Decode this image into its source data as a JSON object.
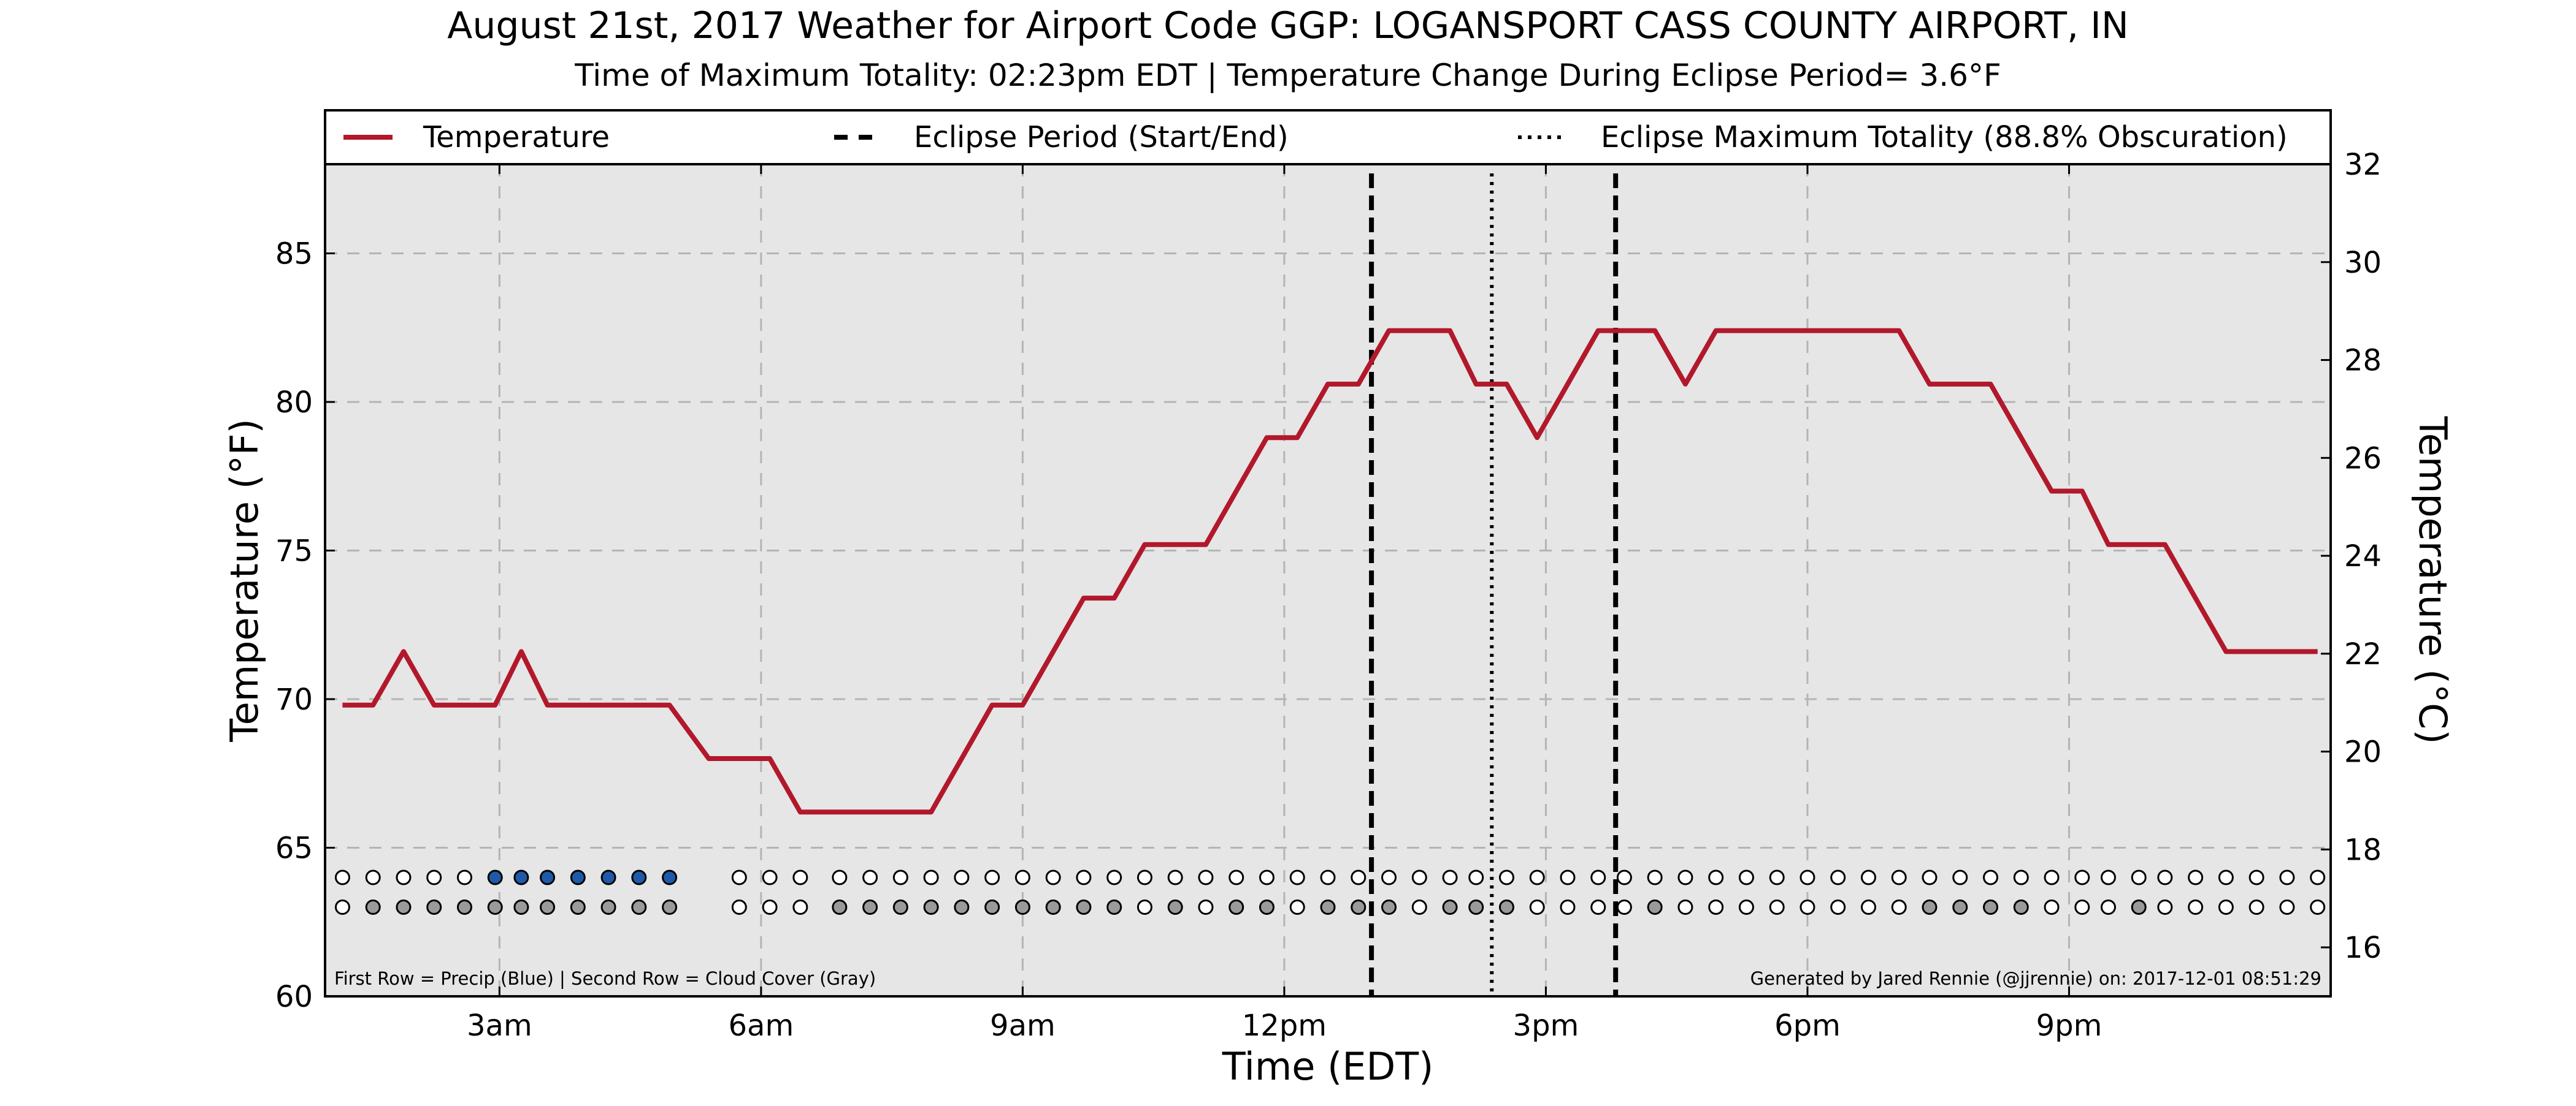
{
  "chart_data": {
    "type": "line",
    "title": "August 21st, 2017 Weather for Airport Code GGP: LOGANSPORT CASS COUNTY AIRPORT, IN",
    "subtitle": "Time of Maximum Totality: 02:23pm EDT | Temperature Change During Eclipse Period= 3.6°F",
    "xlabel": "Time (EDT)",
    "ylabel": "Temperature (°F)",
    "ylabel_right": "Temperature (°C)",
    "xlim": [
      1.0,
      24.0
    ],
    "ylim": [
      60,
      88
    ],
    "ylim_right": [
      15.0,
      32.0
    ],
    "x_ticks": [
      {
        "x": 3,
        "label": "3am"
      },
      {
        "x": 6,
        "label": "6am"
      },
      {
        "x": 9,
        "label": "9am"
      },
      {
        "x": 12,
        "label": "12pm"
      },
      {
        "x": 15,
        "label": "3pm"
      },
      {
        "x": 18,
        "label": "6pm"
      },
      {
        "x": 21,
        "label": "9pm"
      }
    ],
    "y_ticks": [
      60,
      65,
      70,
      75,
      80,
      85
    ],
    "y_ticks_right": [
      16,
      18,
      20,
      22,
      24,
      26,
      28,
      30,
      32
    ],
    "grid": true,
    "legend": {
      "placement": "top",
      "entries": [
        {
          "label": "Temperature",
          "style": "solid"
        },
        {
          "label": "Eclipse Period (Start/End)",
          "style": "dashed"
        },
        {
          "label": "Eclipse Maximum Totality (88.8% Obscuration)",
          "style": "dotted"
        }
      ]
    },
    "series": [
      {
        "name": "Temperature",
        "color": "#b2182b",
        "x": [
          1.2,
          1.55,
          1.9,
          2.25,
          2.6,
          2.95,
          3.25,
          3.55,
          3.9,
          4.25,
          4.6,
          4.95,
          5.4,
          5.75,
          6.1,
          6.45,
          6.9,
          7.25,
          7.6,
          7.95,
          8.3,
          8.65,
          9.0,
          9.35,
          9.7,
          10.05,
          10.4,
          10.75,
          11.1,
          11.45,
          11.8,
          12.15,
          12.5,
          12.85,
          13.2,
          13.55,
          13.9,
          14.2,
          14.55,
          14.9,
          15.25,
          15.6,
          15.9,
          16.25,
          16.6,
          16.95,
          17.3,
          17.65,
          18.0,
          18.35,
          18.7,
          19.05,
          19.4,
          19.75,
          20.1,
          20.45,
          20.8,
          21.15,
          21.45,
          21.8,
          22.1,
          22.45,
          22.8,
          23.15,
          23.5,
          23.85
        ],
        "values": [
          69.8,
          69.8,
          71.6,
          69.8,
          69.8,
          69.8,
          71.6,
          69.8,
          69.8,
          69.8,
          69.8,
          69.8,
          68.0,
          68.0,
          68.0,
          66.2,
          66.2,
          66.2,
          66.2,
          66.2,
          68.0,
          69.8,
          69.8,
          71.6,
          73.4,
          73.4,
          75.2,
          75.2,
          75.2,
          77.0,
          78.8,
          78.8,
          80.6,
          80.6,
          82.4,
          82.4,
          82.4,
          80.6,
          80.6,
          78.8,
          80.6,
          82.4,
          82.4,
          82.4,
          80.6,
          82.4,
          82.4,
          82.4,
          82.4,
          82.4,
          82.4,
          82.4,
          80.6,
          80.6,
          80.6,
          78.8,
          77.0,
          77.0,
          75.2,
          75.2,
          75.2,
          73.4,
          71.6,
          71.6,
          71.6,
          71.6
        ]
      }
    ],
    "eclipse_period": {
      "start": 13.0,
      "end": 15.8,
      "start_label": "",
      "end_label": ""
    },
    "max_totality": 14.38,
    "indicator_rows": {
      "precip_row": {
        "y": 64,
        "x": [
          1.2,
          1.55,
          1.9,
          2.25,
          2.6,
          2.95,
          3.25,
          3.55,
          3.9,
          4.25,
          4.6,
          4.95,
          5.75,
          6.1,
          6.45,
          6.9,
          7.25,
          7.6,
          7.95,
          8.3,
          8.65,
          9.0,
          9.35,
          9.7,
          10.05,
          10.4,
          10.75,
          11.1,
          11.45,
          11.8,
          12.15,
          12.5,
          12.85,
          13.2,
          13.55,
          13.9,
          14.2,
          14.55,
          14.9,
          15.25,
          15.6,
          15.9,
          16.25,
          16.6,
          16.95,
          17.3,
          17.65,
          18.0,
          18.35,
          18.7,
          19.05,
          19.4,
          19.75,
          20.1,
          20.45,
          20.8,
          21.15,
          21.45,
          21.8,
          22.1,
          22.45,
          22.8,
          23.15,
          23.5,
          23.85
        ],
        "filled": [
          0,
          0,
          0,
          0,
          0,
          1,
          1,
          1,
          1,
          1,
          1,
          1,
          0,
          0,
          0,
          0,
          0,
          0,
          0,
          0,
          0,
          0,
          0,
          0,
          0,
          0,
          0,
          0,
          0,
          0,
          0,
          0,
          0,
          0,
          0,
          0,
          0,
          0,
          0,
          0,
          0,
          0,
          0,
          0,
          0,
          0,
          0,
          0,
          0,
          0,
          0,
          0,
          0,
          0,
          0,
          0,
          0,
          0,
          0,
          0,
          0,
          0,
          0,
          0,
          0
        ],
        "fill_color": "#1f5aa8"
      },
      "cloud_row": {
        "y": 63,
        "x": [
          1.2,
          1.55,
          1.9,
          2.25,
          2.6,
          2.95,
          3.25,
          3.55,
          3.9,
          4.25,
          4.6,
          4.95,
          5.75,
          6.1,
          6.45,
          6.9,
          7.25,
          7.6,
          7.95,
          8.3,
          8.65,
          9.0,
          9.35,
          9.7,
          10.05,
          10.4,
          10.75,
          11.1,
          11.45,
          11.8,
          12.15,
          12.5,
          12.85,
          13.2,
          13.55,
          13.9,
          14.2,
          14.55,
          14.9,
          15.25,
          15.6,
          15.9,
          16.25,
          16.6,
          16.95,
          17.3,
          17.65,
          18.0,
          18.35,
          18.7,
          19.05,
          19.4,
          19.75,
          20.1,
          20.45,
          20.8,
          21.15,
          21.45,
          21.8,
          22.1,
          22.45,
          22.8,
          23.15,
          23.5,
          23.85
        ],
        "filled": [
          0,
          1,
          1,
          1,
          1,
          1,
          1,
          1,
          1,
          1,
          1,
          1,
          0,
          0,
          0,
          1,
          1,
          1,
          1,
          1,
          1,
          1,
          1,
          1,
          1,
          0,
          1,
          0,
          1,
          1,
          0,
          1,
          1,
          1,
          0,
          1,
          1,
          1,
          0,
          0,
          0,
          0,
          1,
          0,
          0,
          0,
          0,
          0,
          0,
          0,
          0,
          1,
          1,
          1,
          1,
          0,
          0,
          0,
          1,
          0,
          0,
          0,
          0,
          0,
          0
        ],
        "fill_color": "#9a9a9a"
      }
    },
    "footnote_left": "First Row = Precip (Blue) | Second Row = Cloud Cover (Gray)",
    "footnote_right": "Generated by Jared Rennie (@jjrennie) on: 2017-12-01 08:51:29"
  }
}
